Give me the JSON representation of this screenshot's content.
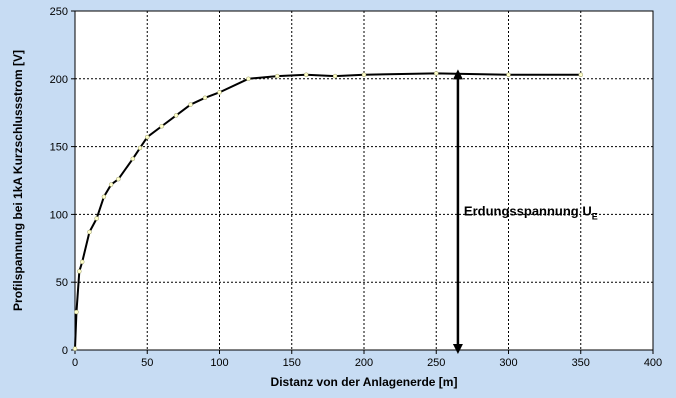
{
  "chart_data": {
    "type": "line",
    "xlabel": "Distanz von der Anlagenerde  [m]",
    "ylabel": "Profilspannung bei 1kA Kurzschlussstrom  [V]",
    "xlim": [
      0,
      400
    ],
    "ylim": [
      0,
      250
    ],
    "x_ticks": [
      0,
      50,
      100,
      150,
      200,
      250,
      300,
      350,
      400
    ],
    "y_ticks": [
      0,
      50,
      100,
      150,
      200,
      250
    ],
    "grid": true,
    "grid_style": "dotted",
    "series": [
      {
        "color": "#000000",
        "marker_color": "#ffffcc",
        "x": [
          0,
          1,
          3,
          5,
          10,
          15,
          20,
          25,
          30,
          40,
          45,
          50,
          60,
          70,
          80,
          90,
          100,
          120,
          140,
          160,
          180,
          200,
          250,
          300,
          350
        ],
        "y": [
          1,
          28,
          58,
          65,
          87,
          97,
          113,
          122,
          126,
          141,
          149,
          157,
          165,
          173,
          181,
          186,
          190,
          200,
          202,
          203,
          202,
          203,
          204,
          203,
          203
        ]
      }
    ],
    "annotation": {
      "text": "Erdungsspannung U",
      "subscript": "E",
      "arrow_x": 265,
      "arrow_y_top": 204,
      "arrow_y_bottom": 0
    }
  }
}
